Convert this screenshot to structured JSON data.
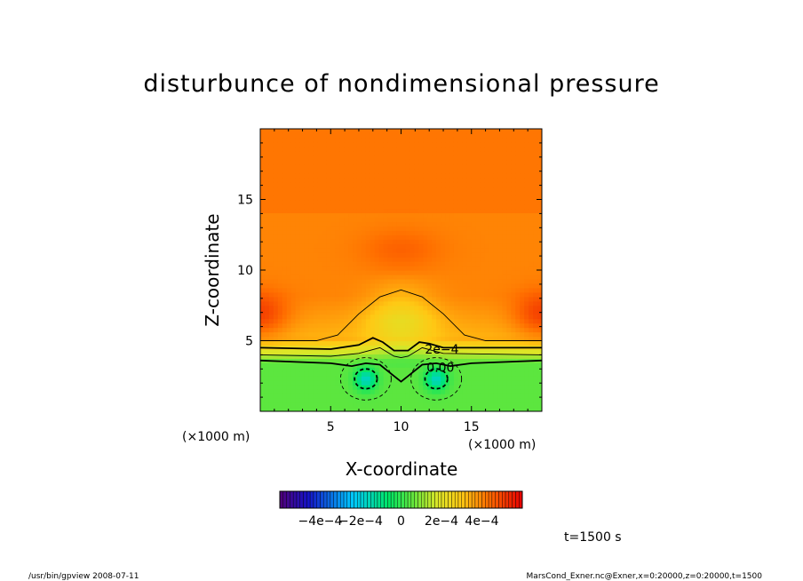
{
  "chart_data": {
    "type": "heatmap",
    "title": "disturbunce of nondimensional pressure",
    "xlabel": "X-coordinate",
    "ylabel": "Z-coordinate",
    "x_unit_label": "(×1000 m)",
    "y_unit_label": "(×1000 m)",
    "xlim": [
      0,
      20
    ],
    "ylim": [
      0,
      20
    ],
    "x_ticks": [
      5,
      10,
      15
    ],
    "y_ticks": [
      5,
      10,
      15
    ],
    "x_tick_labels": [
      "5",
      "10",
      "15"
    ],
    "y_tick_labels": [
      "5",
      "10",
      "15"
    ],
    "colorbar": {
      "range": [
        -0.0006,
        0.0006
      ],
      "tick_values": [
        -0.0004,
        -0.0002,
        0,
        0.0002,
        0.0004
      ],
      "tick_labels": [
        "−4e−4",
        "−2e−4",
        "0",
        "2e−4",
        "4e−4"
      ]
    },
    "contour_labels": [
      {
        "text": "2e−4",
        "x": 12.9,
        "z": 4.4
      },
      {
        "text": "0.00",
        "x": 12.8,
        "z": 3.1
      }
    ],
    "time_label": "t=1500 s",
    "footer_left": "/usr/bin/gpview  2008-07-11",
    "footer_right": "MarsCond_Exner.nc@Exner,x=0:20000,z=0:20000,t=1500"
  }
}
